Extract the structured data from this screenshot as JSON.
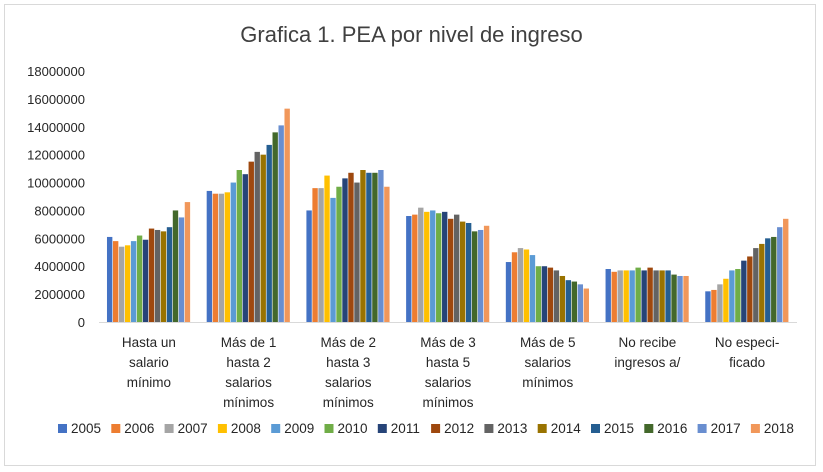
{
  "chart_data": {
    "type": "bar",
    "title": "Grafica 1. PEA por nivel de ingreso",
    "xlabel": "",
    "ylabel": "",
    "ylim": [
      0,
      18000000
    ],
    "yticks": [
      "0",
      "2000000",
      "4000000",
      "6000000",
      "8000000",
      "10000000",
      "12000000",
      "14000000",
      "16000000",
      "18000000"
    ],
    "grid": false,
    "legend_position": "bottom",
    "categories": [
      [
        "Hasta un",
        "salario",
        "mínimo"
      ],
      [
        "Más de 1",
        "hasta 2",
        "salarios",
        "mínimos"
      ],
      [
        "Más de 2",
        "hasta 3",
        "salarios",
        "mínimos"
      ],
      [
        "Más de 3",
        "hasta 5",
        "salarios",
        "mínimos"
      ],
      [
        "Más de 5",
        "salarios",
        "mínimos"
      ],
      [
        "No recibe",
        "ingresos a/"
      ],
      [
        "No especi-",
        "ficado"
      ]
    ],
    "series": [
      {
        "name": "2005",
        "color": "#4472c4",
        "values": [
          6100000,
          9400000,
          8000000,
          7600000,
          4300000,
          3800000,
          2200000
        ]
      },
      {
        "name": "2006",
        "color": "#ed7d31",
        "values": [
          5800000,
          9200000,
          9600000,
          7700000,
          5000000,
          3600000,
          2300000
        ]
      },
      {
        "name": "2007",
        "color": "#a5a5a5",
        "values": [
          5400000,
          9200000,
          9600000,
          8200000,
          5300000,
          3700000,
          2700000
        ]
      },
      {
        "name": "2008",
        "color": "#ffc000",
        "values": [
          5500000,
          9300000,
          10500000,
          7900000,
          5200000,
          3700000,
          3100000
        ]
      },
      {
        "name": "2009",
        "color": "#5b9bd5",
        "values": [
          5800000,
          10000000,
          8900000,
          8000000,
          4800000,
          3700000,
          3700000
        ]
      },
      {
        "name": "2010",
        "color": "#70ad47",
        "values": [
          6200000,
          10900000,
          9700000,
          7800000,
          4000000,
          3900000,
          3800000
        ]
      },
      {
        "name": "2011",
        "color": "#264478",
        "values": [
          5900000,
          10600000,
          10300000,
          7900000,
          4000000,
          3700000,
          4400000
        ]
      },
      {
        "name": "2012",
        "color": "#9e480e",
        "values": [
          6700000,
          11500000,
          10700000,
          7400000,
          3900000,
          3900000,
          4700000
        ]
      },
      {
        "name": "2013",
        "color": "#636363",
        "values": [
          6600000,
          12200000,
          10000000,
          7700000,
          3700000,
          3700000,
          5300000
        ]
      },
      {
        "name": "2014",
        "color": "#997300",
        "values": [
          6500000,
          12000000,
          10900000,
          7200000,
          3300000,
          3700000,
          5600000
        ]
      },
      {
        "name": "2015",
        "color": "#255e91",
        "values": [
          6800000,
          12700000,
          10700000,
          7100000,
          3000000,
          3700000,
          6000000
        ]
      },
      {
        "name": "2016",
        "color": "#43682b",
        "values": [
          8000000,
          13600000,
          10700000,
          6500000,
          2900000,
          3400000,
          6100000
        ]
      },
      {
        "name": "2017",
        "color": "#698ed0",
        "values": [
          7500000,
          14100000,
          10900000,
          6600000,
          2700000,
          3300000,
          6800000
        ]
      },
      {
        "name": "2018",
        "color": "#f1975a",
        "values": [
          8600000,
          15300000,
          9700000,
          6900000,
          2400000,
          3300000,
          7400000
        ]
      }
    ]
  }
}
